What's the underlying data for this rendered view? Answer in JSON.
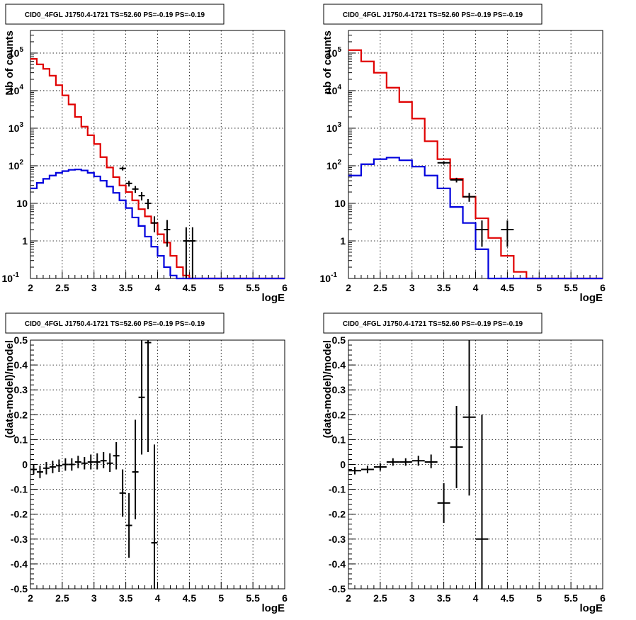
{
  "panel_title": "CID0_4FGL J1750.4-1721 TS=52.60 PS=-0.19 PS=-0.19",
  "colors": {
    "model_total": "#e00000",
    "model_source": "#0000dd",
    "data": "#000000"
  },
  "chart_data": [
    {
      "type": "line",
      "title": "CID0_4FGL J1750.4-1721 TS=52.60 PS=-0.19 PS=-0.19",
      "xlabel": "logE",
      "ylabel": "Nb of counts",
      "xlim": [
        2,
        6
      ],
      "ylim": [
        0.1,
        400000
      ],
      "yscale": "log",
      "grid": true,
      "x_ticks": [
        "2",
        "2.5",
        "3",
        "3.5",
        "4",
        "4.5",
        "5",
        "5.5",
        "6"
      ],
      "y_ticks": [
        "10^-1",
        "1",
        "10",
        "10^2",
        "10^3",
        "10^4",
        "10^5"
      ],
      "bin_edges": [
        2.0,
        2.1,
        2.2,
        2.3,
        2.4,
        2.5,
        2.6,
        2.7,
        2.8,
        2.9,
        3.0,
        3.1,
        3.2,
        3.3,
        3.4,
        3.5,
        3.6,
        3.7,
        3.8,
        3.9,
        4.0,
        4.1,
        4.2,
        4.3,
        4.4,
        4.5,
        4.6,
        4.7,
        4.8,
        4.9,
        5.0,
        5.1,
        5.2,
        5.3,
        5.4,
        5.5,
        5.6,
        5.7,
        5.8,
        5.9,
        6.0
      ],
      "series": [
        {
          "color": "#e00000",
          "values": [
            70000,
            50000,
            38000,
            25000,
            14000,
            7500,
            4300,
            2000,
            1100,
            650,
            380,
            170,
            90,
            50,
            30,
            20,
            12,
            7,
            4.5,
            3,
            1.5,
            0.9,
            0.4,
            0.2,
            0.12,
            0.1,
            0.1,
            0.1,
            0.1,
            0.1,
            0.1,
            0.1,
            0.1,
            0.1,
            0.1,
            0.1,
            0.1,
            0.1,
            0.1,
            0.1
          ]
        },
        {
          "color": "#0000dd",
          "values": [
            25,
            35,
            45,
            55,
            65,
            72,
            78,
            80,
            75,
            65,
            52,
            40,
            28,
            19,
            12,
            7.5,
            4.2,
            2.5,
            1.3,
            0.7,
            0.4,
            0.2,
            0.12,
            0.1,
            0.1,
            0.1,
            0.1,
            0.1,
            0.1,
            0.1,
            0.1,
            0.1,
            0.1,
            0.1,
            0.1,
            0.1,
            0.1,
            0.1,
            0.1,
            0.1
          ]
        }
      ],
      "points": [
        {
          "x": 3.45,
          "y": 85,
          "xerr": 0.05,
          "ylo": 75,
          "yhi": 95
        },
        {
          "x": 3.55,
          "y": 34,
          "xerr": 0.05,
          "ylo": 28,
          "yhi": 40
        },
        {
          "x": 3.65,
          "y": 24,
          "xerr": 0.05,
          "ylo": 19,
          "yhi": 29
        },
        {
          "x": 3.75,
          "y": 16,
          "xerr": 0.05,
          "ylo": 12,
          "yhi": 20
        },
        {
          "x": 3.85,
          "y": 10,
          "xerr": 0.05,
          "ylo": 7,
          "yhi": 13
        },
        {
          "x": 3.95,
          "y": 3,
          "xerr": 0.05,
          "ylo": 1.7,
          "yhi": 4.5
        },
        {
          "x": 4.15,
          "y": 2,
          "xerr": 0.05,
          "ylo": 0.7,
          "yhi": 3.6
        },
        {
          "x": 4.45,
          "y": 1,
          "xerr": 0.05,
          "ylo": 0.1,
          "yhi": 2.3
        },
        {
          "x": 4.55,
          "y": 1,
          "xerr": 0.05,
          "ylo": 0.1,
          "yhi": 2.3
        }
      ]
    },
    {
      "type": "line",
      "title": "CID0_4FGL J1750.4-1721 TS=52.60 PS=-0.19 PS=-0.19",
      "xlabel": "logE",
      "ylabel": "nb of counts",
      "xlim": [
        2,
        6
      ],
      "ylim": [
        0.1,
        400000
      ],
      "yscale": "log",
      "grid": true,
      "x_ticks": [
        "2",
        "2.5",
        "3",
        "3.5",
        "4",
        "4.5",
        "5",
        "5.5",
        "6"
      ],
      "y_ticks": [
        "10^-1",
        "1",
        "10",
        "10^2",
        "10^3",
        "10^4",
        "10^5"
      ],
      "bin_edges": [
        2.0,
        2.2,
        2.4,
        2.6,
        2.8,
        3.0,
        3.2,
        3.4,
        3.6,
        3.8,
        4.0,
        4.2,
        4.4,
        4.6,
        4.8,
        5.0,
        5.2,
        5.4,
        5.6,
        5.8,
        6.0
      ],
      "series": [
        {
          "color": "#e00000",
          "values": [
            120000,
            60000,
            30000,
            12000,
            5000,
            1800,
            450,
            150,
            45,
            15,
            4,
            1.2,
            0.4,
            0.15,
            0.1,
            0.1,
            0.1,
            0.1,
            0.1,
            0.1
          ]
        },
        {
          "color": "#0000dd",
          "values": [
            55,
            110,
            150,
            165,
            140,
            95,
            55,
            25,
            8,
            3,
            0.6,
            0.1,
            0.1,
            0.1,
            0.1,
            0.1,
            0.1,
            0.1,
            0.1,
            0.1
          ]
        }
      ],
      "points": [
        {
          "x": 3.5,
          "y": 120,
          "xerr": 0.1,
          "ylo": 110,
          "yhi": 132
        },
        {
          "x": 3.7,
          "y": 42,
          "xerr": 0.1,
          "ylo": 36,
          "yhi": 48
        },
        {
          "x": 3.9,
          "y": 15,
          "xerr": 0.1,
          "ylo": 11,
          "yhi": 19
        },
        {
          "x": 4.1,
          "y": 2,
          "xerr": 0.1,
          "ylo": 0.7,
          "yhi": 3.5
        },
        {
          "x": 4.5,
          "y": 2,
          "xerr": 0.1,
          "ylo": 0.7,
          "yhi": 3.5
        }
      ]
    },
    {
      "type": "scatter",
      "title": "CID0_4FGL J1750.4-1721 TS=52.60 PS=-0.19 PS=-0.19",
      "xlabel": "logE",
      "ylabel": "(data-model)/model",
      "xlim": [
        2,
        6
      ],
      "ylim": [
        -0.5,
        0.5
      ],
      "grid": true,
      "x_ticks": [
        "2",
        "2.5",
        "3",
        "3.5",
        "4",
        "4.5",
        "5",
        "5.5",
        "6"
      ],
      "y_ticks": [
        "-0.5",
        "-0.4",
        "-0.3",
        "-0.2",
        "-0.1",
        "0",
        "0.1",
        "0.2",
        "0.3",
        "0.4",
        "0.5"
      ],
      "points": [
        {
          "x": 2.05,
          "y": -0.02,
          "xerr": 0.05,
          "ylo": -0.04,
          "yhi": 0.0
        },
        {
          "x": 2.15,
          "y": -0.03,
          "xerr": 0.05,
          "ylo": -0.055,
          "yhi": -0.005
        },
        {
          "x": 2.25,
          "y": -0.015,
          "xerr": 0.05,
          "ylo": -0.04,
          "yhi": 0.01
        },
        {
          "x": 2.35,
          "y": -0.01,
          "xerr": 0.05,
          "ylo": -0.035,
          "yhi": 0.015
        },
        {
          "x": 2.45,
          "y": -0.005,
          "xerr": 0.05,
          "ylo": -0.03,
          "yhi": 0.02
        },
        {
          "x": 2.55,
          "y": 0.0,
          "xerr": 0.05,
          "ylo": -0.025,
          "yhi": 0.025
        },
        {
          "x": 2.65,
          "y": 0.0,
          "xerr": 0.05,
          "ylo": -0.025,
          "yhi": 0.025
        },
        {
          "x": 2.75,
          "y": 0.01,
          "xerr": 0.05,
          "ylo": -0.015,
          "yhi": 0.035
        },
        {
          "x": 2.85,
          "y": 0.005,
          "xerr": 0.05,
          "ylo": -0.02,
          "yhi": 0.03
        },
        {
          "x": 2.95,
          "y": 0.01,
          "xerr": 0.05,
          "ylo": -0.02,
          "yhi": 0.04
        },
        {
          "x": 3.05,
          "y": 0.01,
          "xerr": 0.05,
          "ylo": -0.02,
          "yhi": 0.045
        },
        {
          "x": 3.15,
          "y": 0.015,
          "xerr": 0.05,
          "ylo": -0.015,
          "yhi": 0.05
        },
        {
          "x": 3.25,
          "y": 0.005,
          "xerr": 0.05,
          "ylo": -0.03,
          "yhi": 0.045
        },
        {
          "x": 3.35,
          "y": 0.035,
          "xerr": 0.05,
          "ylo": -0.02,
          "yhi": 0.09
        },
        {
          "x": 3.45,
          "y": -0.115,
          "xerr": 0.05,
          "ylo": -0.21,
          "yhi": -0.02
        },
        {
          "x": 3.55,
          "y": -0.245,
          "xerr": 0.05,
          "ylo": -0.375,
          "yhi": -0.115
        },
        {
          "x": 3.65,
          "y": -0.03,
          "xerr": 0.05,
          "ylo": -0.22,
          "yhi": 0.18
        },
        {
          "x": 3.75,
          "y": 0.27,
          "xerr": 0.05,
          "ylo": 0.04,
          "yhi": 0.5
        },
        {
          "x": 3.85,
          "y": 0.49,
          "xerr": 0.05,
          "ylo": 0.05,
          "yhi": 0.5
        },
        {
          "x": 3.95,
          "y": -0.315,
          "xerr": 0.05,
          "ylo": -0.5,
          "yhi": 0.08
        }
      ]
    },
    {
      "type": "scatter",
      "title": "CID0_4FGL J1750.4-1721 TS=52.60 PS=-0.19 PS=-0.19",
      "xlabel": "logE",
      "ylabel": "(data-model)/model",
      "xlim": [
        2,
        6
      ],
      "ylim": [
        -0.5,
        0.5
      ],
      "grid": true,
      "x_ticks": [
        "2",
        "2.5",
        "3",
        "3.5",
        "4",
        "4.5",
        "5",
        "5.5",
        "6"
      ],
      "y_ticks": [
        "-0.5",
        "-0.4",
        "-0.3",
        "-0.2",
        "-0.1",
        "0",
        "0.1",
        "0.2",
        "0.3",
        "0.4",
        "0.5"
      ],
      "points": [
        {
          "x": 2.1,
          "y": -0.025,
          "xerr": 0.1,
          "ylo": -0.04,
          "yhi": -0.01
        },
        {
          "x": 2.3,
          "y": -0.02,
          "xerr": 0.1,
          "ylo": -0.035,
          "yhi": -0.005
        },
        {
          "x": 2.5,
          "y": -0.01,
          "xerr": 0.1,
          "ylo": -0.025,
          "yhi": 0.005
        },
        {
          "x": 2.7,
          "y": 0.01,
          "xerr": 0.1,
          "ylo": -0.005,
          "yhi": 0.025
        },
        {
          "x": 2.9,
          "y": 0.01,
          "xerr": 0.1,
          "ylo": -0.005,
          "yhi": 0.025
        },
        {
          "x": 3.1,
          "y": 0.015,
          "xerr": 0.1,
          "ylo": -0.005,
          "yhi": 0.035
        },
        {
          "x": 3.3,
          "y": 0.01,
          "xerr": 0.1,
          "ylo": -0.015,
          "yhi": 0.04
        },
        {
          "x": 3.5,
          "y": -0.155,
          "xerr": 0.1,
          "ylo": -0.235,
          "yhi": -0.075
        },
        {
          "x": 3.7,
          "y": 0.07,
          "xerr": 0.1,
          "ylo": -0.095,
          "yhi": 0.235
        },
        {
          "x": 3.9,
          "y": 0.19,
          "xerr": 0.1,
          "ylo": -0.125,
          "yhi": 0.5
        },
        {
          "x": 4.1,
          "y": -0.3,
          "xerr": 0.1,
          "ylo": -0.5,
          "yhi": 0.2
        }
      ]
    }
  ]
}
